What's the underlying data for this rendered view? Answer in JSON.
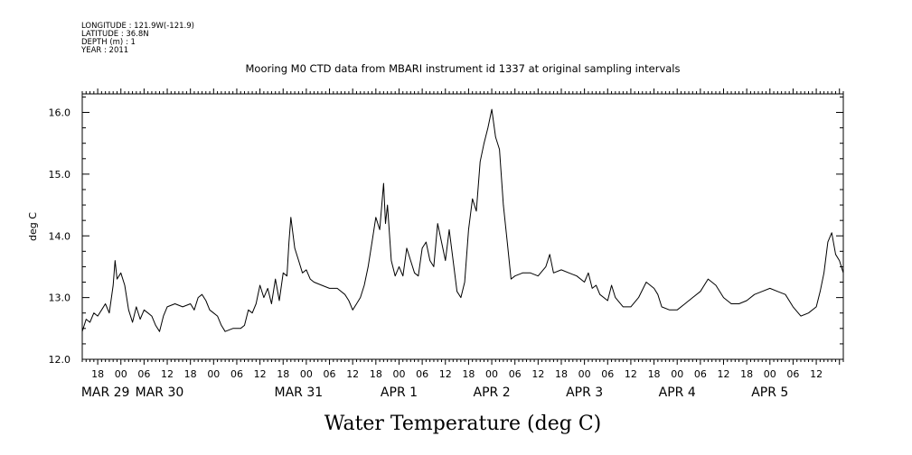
{
  "header": {
    "meta_lines": [
      "LONGITUDE : 121.9W(-121.9)",
      "LATITUDE : 36.8N",
      "DEPTH (m) : 1",
      "YEAR : 2011"
    ],
    "title": "Mooring M0 CTD data from MBARI instrument id 1337 at original sampling intervals"
  },
  "chart_data": {
    "type": "line",
    "title": "Mooring M0 CTD data from MBARI instrument id 1337 at original sampling intervals",
    "xlabel": "Water Temperature (deg C)",
    "ylabel": "deg C",
    "xlim": [
      "2011-03-28T14:00",
      "2011-04-05T19:00"
    ],
    "ylim": [
      12.0,
      16.3
    ],
    "y_ticks": [
      "12.0",
      "13.0",
      "14.0",
      "15.0",
      "16.0"
    ],
    "x_hour_ticks": [
      {
        "t": "2011-03-28T18:00",
        "label": "18"
      },
      {
        "t": "2011-03-29T00:00",
        "label": "00"
      },
      {
        "t": "2011-03-29T06:00",
        "label": "06"
      },
      {
        "t": "2011-03-29T12:00",
        "label": "12"
      },
      {
        "t": "2011-03-29T18:00",
        "label": "18"
      },
      {
        "t": "2011-03-30T00:00",
        "label": "00"
      },
      {
        "t": "2011-03-30T06:00",
        "label": "06"
      },
      {
        "t": "2011-03-30T12:00",
        "label": "12"
      },
      {
        "t": "2011-03-30T18:00",
        "label": "18"
      },
      {
        "t": "2011-03-31T00:00",
        "label": "00"
      },
      {
        "t": "2011-03-31T06:00",
        "label": "06"
      },
      {
        "t": "2011-03-31T12:00",
        "label": "12"
      },
      {
        "t": "2011-03-31T18:00",
        "label": "18"
      },
      {
        "t": "2011-04-01T00:00",
        "label": "00"
      },
      {
        "t": "2011-04-01T06:00",
        "label": "06"
      },
      {
        "t": "2011-04-01T12:00",
        "label": "12"
      },
      {
        "t": "2011-04-01T18:00",
        "label": "18"
      },
      {
        "t": "2011-04-02T00:00",
        "label": "00"
      },
      {
        "t": "2011-04-02T06:00",
        "label": "06"
      },
      {
        "t": "2011-04-02T12:00",
        "label": "12"
      },
      {
        "t": "2011-04-02T18:00",
        "label": "18"
      },
      {
        "t": "2011-04-03T00:00",
        "label": "00"
      },
      {
        "t": "2011-04-03T06:00",
        "label": "06"
      },
      {
        "t": "2011-04-03T12:00",
        "label": "12"
      },
      {
        "t": "2011-04-03T18:00",
        "label": "18"
      },
      {
        "t": "2011-04-04T00:00",
        "label": "00"
      },
      {
        "t": "2011-04-04T06:00",
        "label": "06"
      },
      {
        "t": "2011-04-04T12:00",
        "label": "12"
      },
      {
        "t": "2011-04-04T18:00",
        "label": "18"
      },
      {
        "t": "2011-04-05T00:00",
        "label": "00"
      },
      {
        "t": "2011-04-05T06:00",
        "label": "06"
      },
      {
        "t": "2011-04-05T12:00",
        "label": "12"
      }
    ],
    "x_day_labels": [
      {
        "t": "2011-03-28T20:00",
        "label": "MAR 29"
      },
      {
        "t": "2011-03-29T10:00",
        "label": "MAR 30"
      },
      {
        "t": "2011-03-30T22:00",
        "label": "MAR 31"
      },
      {
        "t": "2011-04-01T00:00",
        "label": "APR  1"
      },
      {
        "t": "2011-04-02T00:00",
        "label": "APR  2"
      },
      {
        "t": "2011-04-03T00:00",
        "label": "APR  3"
      },
      {
        "t": "2011-04-04T00:00",
        "label": "APR  4"
      },
      {
        "t": "2011-04-05T00:00",
        "label": "APR  5"
      }
    ],
    "grid": false,
    "legend": "none",
    "series": [
      {
        "color": "#000000",
        "points": [
          [
            "2011-03-28T14:00",
            12.45
          ],
          [
            "2011-03-28T15:00",
            12.65
          ],
          [
            "2011-03-28T16:00",
            12.6
          ],
          [
            "2011-03-28T17:00",
            12.75
          ],
          [
            "2011-03-28T18:00",
            12.7
          ],
          [
            "2011-03-28T19:00",
            12.8
          ],
          [
            "2011-03-28T20:00",
            12.9
          ],
          [
            "2011-03-28T21:00",
            12.75
          ],
          [
            "2011-03-28T22:00",
            13.2
          ],
          [
            "2011-03-28T22:30",
            13.6
          ],
          [
            "2011-03-28T23:00",
            13.3
          ],
          [
            "2011-03-29T00:00",
            13.4
          ],
          [
            "2011-03-29T01:00",
            13.2
          ],
          [
            "2011-03-29T02:00",
            12.8
          ],
          [
            "2011-03-29T03:00",
            12.6
          ],
          [
            "2011-03-29T04:00",
            12.85
          ],
          [
            "2011-03-29T05:00",
            12.65
          ],
          [
            "2011-03-29T06:00",
            12.8
          ],
          [
            "2011-03-29T07:00",
            12.75
          ],
          [
            "2011-03-29T08:00",
            12.7
          ],
          [
            "2011-03-29T09:00",
            12.55
          ],
          [
            "2011-03-29T10:00",
            12.45
          ],
          [
            "2011-03-29T11:00",
            12.7
          ],
          [
            "2011-03-29T12:00",
            12.85
          ],
          [
            "2011-03-29T14:00",
            12.9
          ],
          [
            "2011-03-29T16:00",
            12.85
          ],
          [
            "2011-03-29T18:00",
            12.9
          ],
          [
            "2011-03-29T19:00",
            12.8
          ],
          [
            "2011-03-29T20:00",
            13.0
          ],
          [
            "2011-03-29T21:00",
            13.05
          ],
          [
            "2011-03-29T22:00",
            12.95
          ],
          [
            "2011-03-29T23:00",
            12.8
          ],
          [
            "2011-03-30T00:00",
            12.75
          ],
          [
            "2011-03-30T01:00",
            12.7
          ],
          [
            "2011-03-30T02:00",
            12.55
          ],
          [
            "2011-03-30T03:00",
            12.45
          ],
          [
            "2011-03-30T05:00",
            12.5
          ],
          [
            "2011-03-30T07:00",
            12.5
          ],
          [
            "2011-03-30T08:00",
            12.55
          ],
          [
            "2011-03-30T09:00",
            12.8
          ],
          [
            "2011-03-30T10:00",
            12.75
          ],
          [
            "2011-03-30T11:00",
            12.9
          ],
          [
            "2011-03-30T12:00",
            13.2
          ],
          [
            "2011-03-30T13:00",
            13.0
          ],
          [
            "2011-03-30T14:00",
            13.15
          ],
          [
            "2011-03-30T15:00",
            12.9
          ],
          [
            "2011-03-30T16:00",
            13.3
          ],
          [
            "2011-03-30T17:00",
            12.95
          ],
          [
            "2011-03-30T18:00",
            13.4
          ],
          [
            "2011-03-30T19:00",
            13.35
          ],
          [
            "2011-03-30T19:30",
            13.9
          ],
          [
            "2011-03-30T20:00",
            14.3
          ],
          [
            "2011-03-30T21:00",
            13.8
          ],
          [
            "2011-03-30T22:00",
            13.6
          ],
          [
            "2011-03-30T23:00",
            13.4
          ],
          [
            "2011-03-31T00:00",
            13.45
          ],
          [
            "2011-03-31T01:00",
            13.3
          ],
          [
            "2011-03-31T02:00",
            13.25
          ],
          [
            "2011-03-31T04:00",
            13.2
          ],
          [
            "2011-03-31T06:00",
            13.15
          ],
          [
            "2011-03-31T08:00",
            13.15
          ],
          [
            "2011-03-31T10:00",
            13.05
          ],
          [
            "2011-03-31T11:00",
            12.95
          ],
          [
            "2011-03-31T12:00",
            12.8
          ],
          [
            "2011-03-31T13:00",
            12.9
          ],
          [
            "2011-03-31T14:00",
            13.0
          ],
          [
            "2011-03-31T15:00",
            13.2
          ],
          [
            "2011-03-31T16:00",
            13.5
          ],
          [
            "2011-03-31T17:00",
            13.9
          ],
          [
            "2011-03-31T18:00",
            14.3
          ],
          [
            "2011-03-31T19:00",
            14.1
          ],
          [
            "2011-03-31T20:00",
            14.85
          ],
          [
            "2011-03-31T20:30",
            14.2
          ],
          [
            "2011-03-31T21:00",
            14.5
          ],
          [
            "2011-03-31T22:00",
            13.6
          ],
          [
            "2011-03-31T23:00",
            13.35
          ],
          [
            "2011-04-01T00:00",
            13.5
          ],
          [
            "2011-04-01T01:00",
            13.35
          ],
          [
            "2011-04-01T02:00",
            13.8
          ],
          [
            "2011-04-01T03:00",
            13.6
          ],
          [
            "2011-04-01T04:00",
            13.4
          ],
          [
            "2011-04-01T05:00",
            13.35
          ],
          [
            "2011-04-01T06:00",
            13.8
          ],
          [
            "2011-04-01T07:00",
            13.9
          ],
          [
            "2011-04-01T08:00",
            13.6
          ],
          [
            "2011-04-01T09:00",
            13.5
          ],
          [
            "2011-04-01T10:00",
            14.2
          ],
          [
            "2011-04-01T11:00",
            13.9
          ],
          [
            "2011-04-01T12:00",
            13.6
          ],
          [
            "2011-04-01T13:00",
            14.1
          ],
          [
            "2011-04-01T14:00",
            13.6
          ],
          [
            "2011-04-01T15:00",
            13.1
          ],
          [
            "2011-04-01T16:00",
            13.0
          ],
          [
            "2011-04-01T17:00",
            13.25
          ],
          [
            "2011-04-01T18:00",
            14.1
          ],
          [
            "2011-04-01T19:00",
            14.6
          ],
          [
            "2011-04-01T20:00",
            14.4
          ],
          [
            "2011-04-01T21:00",
            15.2
          ],
          [
            "2011-04-01T22:00",
            15.5
          ],
          [
            "2011-04-01T23:00",
            15.75
          ],
          [
            "2011-04-02T00:00",
            16.05
          ],
          [
            "2011-04-02T01:00",
            15.6
          ],
          [
            "2011-04-02T02:00",
            15.4
          ],
          [
            "2011-04-02T03:00",
            14.5
          ],
          [
            "2011-04-02T04:00",
            13.9
          ],
          [
            "2011-04-02T05:00",
            13.3
          ],
          [
            "2011-04-02T06:00",
            13.35
          ],
          [
            "2011-04-02T08:00",
            13.4
          ],
          [
            "2011-04-02T10:00",
            13.4
          ],
          [
            "2011-04-02T12:00",
            13.35
          ],
          [
            "2011-04-02T14:00",
            13.5
          ],
          [
            "2011-04-02T15:00",
            13.7
          ],
          [
            "2011-04-02T16:00",
            13.4
          ],
          [
            "2011-04-02T18:00",
            13.45
          ],
          [
            "2011-04-02T20:00",
            13.4
          ],
          [
            "2011-04-02T22:00",
            13.35
          ],
          [
            "2011-04-03T00:00",
            13.25
          ],
          [
            "2011-04-03T01:00",
            13.4
          ],
          [
            "2011-04-03T02:00",
            13.15
          ],
          [
            "2011-04-03T03:00",
            13.2
          ],
          [
            "2011-04-03T04:00",
            13.05
          ],
          [
            "2011-04-03T06:00",
            12.95
          ],
          [
            "2011-04-03T07:00",
            13.2
          ],
          [
            "2011-04-03T08:00",
            13.0
          ],
          [
            "2011-04-03T10:00",
            12.85
          ],
          [
            "2011-04-03T12:00",
            12.85
          ],
          [
            "2011-04-03T14:00",
            13.0
          ],
          [
            "2011-04-03T16:00",
            13.25
          ],
          [
            "2011-04-03T18:00",
            13.15
          ],
          [
            "2011-04-03T19:00",
            13.05
          ],
          [
            "2011-04-03T20:00",
            12.85
          ],
          [
            "2011-04-03T22:00",
            12.8
          ],
          [
            "2011-04-04T00:00",
            12.8
          ],
          [
            "2011-04-04T02:00",
            12.9
          ],
          [
            "2011-04-04T04:00",
            13.0
          ],
          [
            "2011-04-04T06:00",
            13.1
          ],
          [
            "2011-04-04T08:00",
            13.3
          ],
          [
            "2011-04-04T10:00",
            13.2
          ],
          [
            "2011-04-04T12:00",
            13.0
          ],
          [
            "2011-04-04T14:00",
            12.9
          ],
          [
            "2011-04-04T16:00",
            12.9
          ],
          [
            "2011-04-04T18:00",
            12.95
          ],
          [
            "2011-04-04T20:00",
            13.05
          ],
          [
            "2011-04-04T22:00",
            13.1
          ],
          [
            "2011-04-05T00:00",
            13.15
          ],
          [
            "2011-04-05T02:00",
            13.1
          ],
          [
            "2011-04-05T04:00",
            13.05
          ],
          [
            "2011-04-05T06:00",
            12.85
          ],
          [
            "2011-04-05T08:00",
            12.7
          ],
          [
            "2011-04-05T10:00",
            12.75
          ],
          [
            "2011-04-05T12:00",
            12.85
          ],
          [
            "2011-04-05T13:00",
            13.1
          ],
          [
            "2011-04-05T14:00",
            13.4
          ],
          [
            "2011-04-05T15:00",
            13.9
          ],
          [
            "2011-04-05T16:00",
            14.05
          ],
          [
            "2011-04-05T17:00",
            13.7
          ],
          [
            "2011-04-05T18:00",
            13.6
          ],
          [
            "2011-04-05T19:00",
            13.4
          ]
        ]
      }
    ]
  }
}
